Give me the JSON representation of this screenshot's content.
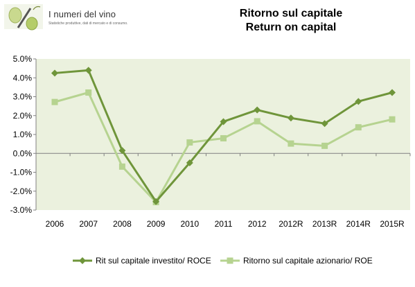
{
  "logo": {
    "title": "I numeri del vino",
    "tagline": "Statistiche produttive, dati di mercato e di consumo."
  },
  "colors": {
    "plot_background": "#ebf1de",
    "series_1": "#6f953a",
    "series_2": "#b6d390",
    "axis": "#808080"
  },
  "chart_data": {
    "type": "line",
    "title_line1": "Ritorno sul capitale",
    "title_line2": "Return on capital",
    "categories": [
      "2006",
      "2007",
      "2008",
      "2009",
      "2010",
      "2011",
      "2012",
      "2012R",
      "2013R",
      "2014R",
      "2015R"
    ],
    "series": [
      {
        "name": "Rit sul capitale investito/ ROCE",
        "marker": "diamond",
        "values": [
          4.25,
          4.4,
          0.15,
          -2.55,
          -0.5,
          1.68,
          2.3,
          1.87,
          1.58,
          2.75,
          3.22
        ]
      },
      {
        "name": "Ritorno sul capitale azionario/ ROE",
        "marker": "square",
        "values": [
          2.72,
          3.22,
          -0.7,
          -2.58,
          0.58,
          0.8,
          1.7,
          0.52,
          0.4,
          1.38,
          1.8
        ]
      }
    ],
    "y_ticks": [
      "5.0%",
      "4.0%",
      "3.0%",
      "2.0%",
      "1.0%",
      "0.0%",
      "-1.0%",
      "-2.0%",
      "-3.0%"
    ],
    "ylim": [
      -3,
      5
    ],
    "grid": false,
    "legend_position": "bottom"
  }
}
